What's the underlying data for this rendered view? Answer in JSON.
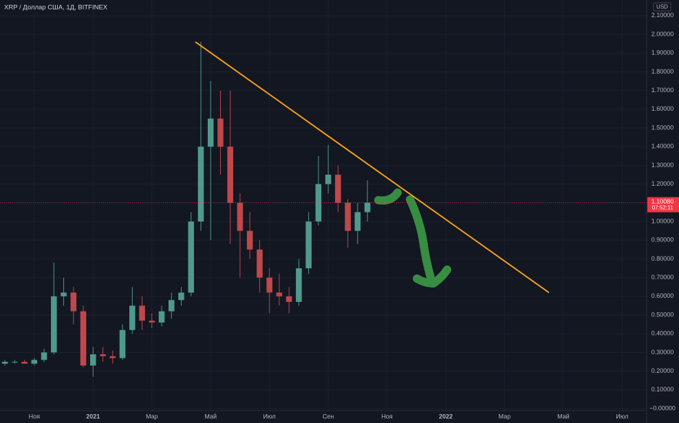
{
  "chart_data": {
    "type": "candlestick",
    "title": "XRP / Доллар США, 1Д, BITFINEX",
    "currency": "USD",
    "categories": [
      null,
      null,
      null,
      "Ноя",
      null,
      null,
      null,
      null,
      null,
      "2021",
      null,
      null,
      null,
      null,
      null,
      "Мар",
      null,
      null,
      null,
      null,
      null,
      "Май",
      null,
      null,
      null,
      null,
      null,
      "Июл",
      null,
      null,
      null,
      null,
      null,
      "Сен",
      null,
      null,
      null,
      null,
      null,
      "Ноя",
      null,
      null,
      null,
      null,
      null,
      "2022",
      null,
      null,
      null,
      null,
      null,
      "Мар",
      null,
      null,
      null,
      null,
      null,
      "Май",
      null,
      null,
      null,
      null,
      null,
      "Июл",
      null,
      null
    ],
    "open": [
      0.24,
      0.25,
      0.25,
      0.24,
      0.26,
      0.3,
      0.6,
      0.62,
      0.52,
      0.23,
      0.29,
      0.28,
      0.27,
      0.42,
      0.55,
      0.47,
      0.46,
      0.52,
      0.58,
      0.62,
      1.0,
      1.4,
      1.55,
      1.4,
      1.1,
      0.95,
      0.85,
      0.7,
      0.62,
      0.6,
      0.57,
      0.75,
      1.0,
      1.2,
      1.25,
      1.1,
      0.95,
      1.05,
      null,
      null,
      null,
      null,
      null,
      null,
      null,
      null,
      null,
      null,
      null,
      null,
      null,
      null,
      null,
      null,
      null,
      null,
      null,
      null,
      null,
      null,
      null,
      null,
      null,
      null,
      null,
      null
    ],
    "high": [
      0.26,
      0.26,
      0.26,
      0.27,
      0.32,
      0.78,
      0.7,
      0.65,
      0.55,
      0.33,
      0.33,
      0.31,
      0.45,
      0.65,
      0.6,
      0.51,
      0.55,
      0.62,
      0.65,
      1.05,
      1.96,
      1.75,
      1.7,
      1.7,
      1.15,
      1.05,
      0.9,
      0.75,
      0.72,
      0.65,
      0.8,
      1.05,
      1.35,
      1.41,
      1.3,
      1.12,
      1.1,
      1.22,
      null,
      null,
      null,
      null,
      null,
      null,
      null,
      null,
      null,
      null,
      null,
      null,
      null,
      null,
      null,
      null,
      null,
      null,
      null,
      null,
      null,
      null,
      null,
      null,
      null,
      null,
      null,
      null
    ],
    "low": [
      0.23,
      0.24,
      0.24,
      0.23,
      0.25,
      0.29,
      0.55,
      0.45,
      0.22,
      0.17,
      0.25,
      0.24,
      0.26,
      0.4,
      0.42,
      0.43,
      0.44,
      0.48,
      0.55,
      0.6,
      0.95,
      0.9,
      1.25,
      0.88,
      0.7,
      0.8,
      0.62,
      0.51,
      0.55,
      0.51,
      0.55,
      0.72,
      0.98,
      1.15,
      1.05,
      0.86,
      0.88,
      1.0,
      null,
      null,
      null,
      null,
      null,
      null,
      null,
      null,
      null,
      null,
      null,
      null,
      null,
      null,
      null,
      null,
      null,
      null,
      null,
      null,
      null,
      null,
      null,
      null,
      null,
      null,
      null,
      null
    ],
    "close": [
      0.25,
      0.25,
      0.24,
      0.26,
      0.3,
      0.6,
      0.62,
      0.52,
      0.23,
      0.29,
      0.28,
      0.27,
      0.42,
      0.55,
      0.47,
      0.46,
      0.52,
      0.58,
      0.62,
      1.0,
      1.4,
      1.55,
      1.4,
      1.1,
      0.95,
      0.85,
      0.7,
      0.62,
      0.6,
      0.57,
      0.75,
      1.0,
      1.2,
      1.25,
      1.1,
      0.95,
      1.05,
      1.1008,
      null,
      null,
      null,
      null,
      null,
      null,
      null,
      null,
      null,
      null,
      null,
      null,
      null,
      null,
      null,
      null,
      null,
      null,
      null,
      null,
      null,
      null,
      null,
      null,
      null,
      null,
      null,
      null
    ],
    "up_color": "#4f9a8c",
    "down_color": "#c0474a",
    "ylim": [
      -0.011,
      2.184
    ],
    "yticks": [
      {
        "value": 2.1,
        "label": "2.10000"
      },
      {
        "value": 2.0,
        "label": "2.00000"
      },
      {
        "value": 1.9,
        "label": "1.90000"
      },
      {
        "value": 1.8,
        "label": "1.80000"
      },
      {
        "value": 1.7,
        "label": "1.70000"
      },
      {
        "value": 1.6,
        "label": "1.60000"
      },
      {
        "value": 1.5,
        "label": "1.50000"
      },
      {
        "value": 1.4,
        "label": "1.40000"
      },
      {
        "value": 1.3,
        "label": "1.30000"
      },
      {
        "value": 1.2,
        "label": "1.20000"
      },
      {
        "value": 1.1,
        "label": "1.10000"
      },
      {
        "value": 1.0,
        "label": "1.00000"
      },
      {
        "value": 0.9,
        "label": "0.90000"
      },
      {
        "value": 0.8,
        "label": "0.80000"
      },
      {
        "value": 0.7,
        "label": "0.70000"
      },
      {
        "value": 0.6,
        "label": "0.60000"
      },
      {
        "value": 0.5,
        "label": "0.50000"
      },
      {
        "value": 0.4,
        "label": "0.40000"
      },
      {
        "value": 0.3,
        "label": "0.30000"
      },
      {
        "value": 0.2,
        "label": "0.20000"
      },
      {
        "value": 0.1,
        "label": "0.10000"
      },
      {
        "value": 0,
        "label": "−0.00000"
      }
    ],
    "grid": true,
    "last_price": {
      "value": 1.1008,
      "label": "1.10080",
      "countdown": "07:52:11",
      "color": "#f23645"
    },
    "trendline": {
      "values": [
        1.96,
        0.62
      ],
      "color": "#f59e1b"
    }
  }
}
